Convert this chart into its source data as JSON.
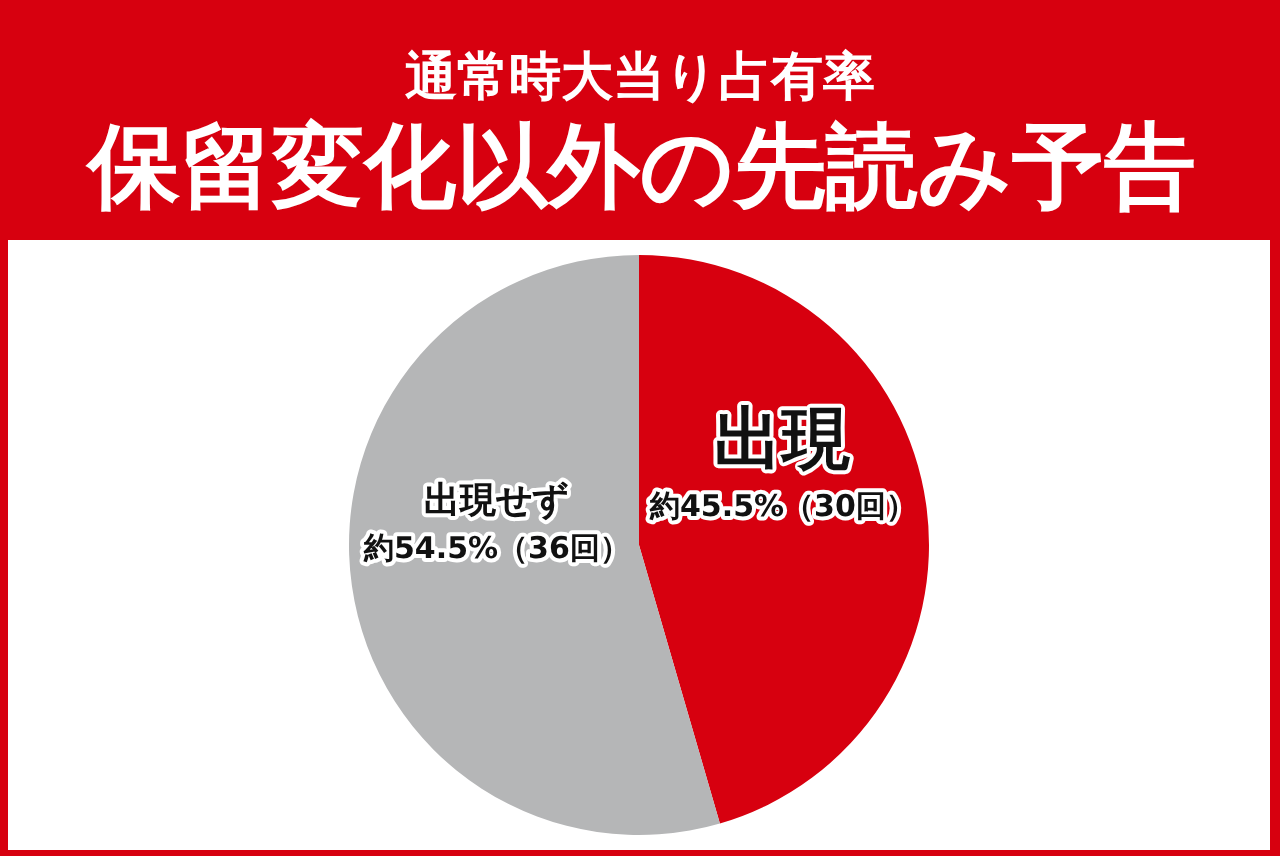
{
  "chart_data": {
    "type": "pie",
    "title": "通常時大当り占有率",
    "subtitle": "保留変化以外の先読み予告",
    "categories": [
      "出現",
      "出現せず"
    ],
    "values": [
      45.5,
      54.5
    ],
    "value_labels": [
      "約45.5%（30回）",
      "約54.5%（36回）"
    ],
    "colors": [
      "#d7000f",
      "#b5b6b7"
    ]
  }
}
